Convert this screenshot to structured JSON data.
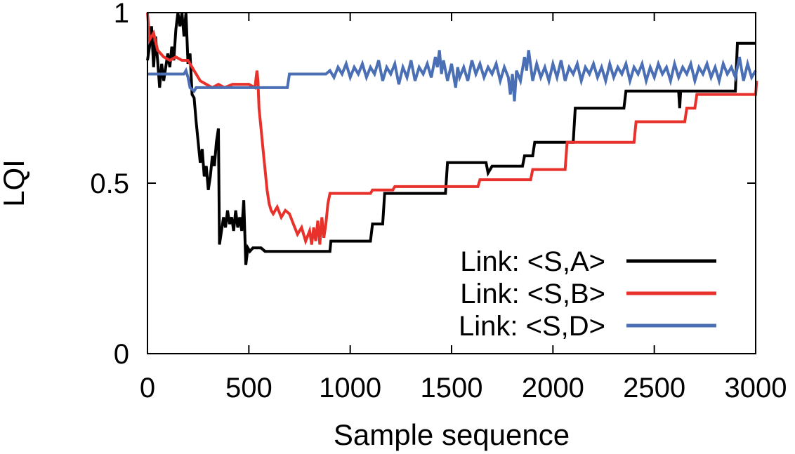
{
  "chart_data": {
    "type": "line",
    "title": "",
    "xlabel": "Sample sequence",
    "ylabel": "LQI",
    "xlim": [
      0,
      3000
    ],
    "ylim": [
      0,
      1
    ],
    "grid": false,
    "legend_position": "bottom-right",
    "x_ticks": [
      {
        "value": 0,
        "label": "0"
      },
      {
        "value": 500,
        "label": "500"
      },
      {
        "value": 1000,
        "label": "1000"
      },
      {
        "value": 1500,
        "label": "1500"
      },
      {
        "value": 2000,
        "label": "2000"
      },
      {
        "value": 2500,
        "label": "2500"
      },
      {
        "value": 3000,
        "label": "3000"
      }
    ],
    "y_ticks": [
      {
        "value": 0,
        "label": "0"
      },
      {
        "value": 0.5,
        "label": "0.5"
      },
      {
        "value": 1,
        "label": "1"
      }
    ],
    "series": [
      {
        "name": "Link: <S,A>",
        "color": "#000000",
        "points": [
          [
            0,
            0.86
          ],
          [
            10,
            0.9
          ],
          [
            20,
            0.96
          ],
          [
            30,
            0.84
          ],
          [
            40,
            0.93
          ],
          [
            50,
            0.86
          ],
          [
            60,
            0.78
          ],
          [
            70,
            0.85
          ],
          [
            80,
            0.8
          ],
          [
            90,
            0.84
          ],
          [
            100,
            0.88
          ],
          [
            110,
            0.84
          ],
          [
            120,
            0.9
          ],
          [
            130,
            0.86
          ],
          [
            140,
            0.95
          ],
          [
            150,
            1.0
          ],
          [
            160,
            0.96
          ],
          [
            170,
            1.0
          ],
          [
            180,
            0.93
          ],
          [
            190,
            1.0
          ],
          [
            200,
            0.85
          ],
          [
            210,
            0.88
          ],
          [
            220,
            0.76
          ],
          [
            230,
            0.75
          ],
          [
            240,
            0.68
          ],
          [
            250,
            0.62
          ],
          [
            260,
            0.56
          ],
          [
            270,
            0.6
          ],
          [
            280,
            0.52
          ],
          [
            290,
            0.55
          ],
          [
            300,
            0.48
          ],
          [
            310,
            0.52
          ],
          [
            320,
            0.58
          ],
          [
            330,
            0.55
          ],
          [
            340,
            0.62
          ],
          [
            350,
            0.66
          ],
          [
            355,
            0.32
          ],
          [
            365,
            0.36
          ],
          [
            375,
            0.4
          ],
          [
            385,
            0.37
          ],
          [
            395,
            0.42
          ],
          [
            405,
            0.38
          ],
          [
            415,
            0.4
          ],
          [
            425,
            0.36
          ],
          [
            435,
            0.42
          ],
          [
            445,
            0.37
          ],
          [
            455,
            0.4
          ],
          [
            465,
            0.36
          ],
          [
            475,
            0.45
          ],
          [
            485,
            0.26
          ],
          [
            495,
            0.31
          ],
          [
            505,
            0.3
          ],
          [
            520,
            0.31
          ],
          [
            560,
            0.31
          ],
          [
            580,
            0.3
          ],
          [
            900,
            0.3
          ],
          [
            905,
            0.33
          ],
          [
            1100,
            0.33
          ],
          [
            1110,
            0.38
          ],
          [
            1160,
            0.38
          ],
          [
            1170,
            0.47
          ],
          [
            1470,
            0.47
          ],
          [
            1480,
            0.56
          ],
          [
            1670,
            0.56
          ],
          [
            1680,
            0.53
          ],
          [
            1700,
            0.55
          ],
          [
            1850,
            0.55
          ],
          [
            1860,
            0.58
          ],
          [
            1900,
            0.58
          ],
          [
            1910,
            0.62
          ],
          [
            2100,
            0.62
          ],
          [
            2110,
            0.72
          ],
          [
            2350,
            0.72
          ],
          [
            2360,
            0.77
          ],
          [
            2620,
            0.77
          ],
          [
            2625,
            0.72
          ],
          [
            2630,
            0.77
          ],
          [
            2900,
            0.77
          ],
          [
            2910,
            0.91
          ],
          [
            3000,
            0.91
          ]
        ]
      },
      {
        "name": "Link: <S,B>",
        "color": "#e8312b",
        "points": [
          [
            0,
            1.0
          ],
          [
            10,
            0.92
          ],
          [
            30,
            0.94
          ],
          [
            50,
            0.89
          ],
          [
            80,
            0.87
          ],
          [
            110,
            0.86
          ],
          [
            140,
            0.87
          ],
          [
            170,
            0.86
          ],
          [
            200,
            0.86
          ],
          [
            230,
            0.83
          ],
          [
            260,
            0.8
          ],
          [
            290,
            0.79
          ],
          [
            320,
            0.78
          ],
          [
            350,
            0.79
          ],
          [
            380,
            0.78
          ],
          [
            420,
            0.79
          ],
          [
            460,
            0.79
          ],
          [
            500,
            0.79
          ],
          [
            530,
            0.78
          ],
          [
            540,
            0.83
          ],
          [
            545,
            0.8
          ],
          [
            550,
            0.72
          ],
          [
            560,
            0.66
          ],
          [
            570,
            0.6
          ],
          [
            580,
            0.54
          ],
          [
            590,
            0.48
          ],
          [
            600,
            0.44
          ],
          [
            610,
            0.42
          ],
          [
            620,
            0.41
          ],
          [
            640,
            0.43
          ],
          [
            660,
            0.4
          ],
          [
            680,
            0.42
          ],
          [
            700,
            0.41
          ],
          [
            720,
            0.38
          ],
          [
            740,
            0.35
          ],
          [
            760,
            0.37
          ],
          [
            780,
            0.33
          ],
          [
            800,
            0.36
          ],
          [
            810,
            0.32
          ],
          [
            820,
            0.37
          ],
          [
            830,
            0.33
          ],
          [
            840,
            0.39
          ],
          [
            850,
            0.32
          ],
          [
            860,
            0.4
          ],
          [
            870,
            0.34
          ],
          [
            880,
            0.38
          ],
          [
            890,
            0.44
          ],
          [
            900,
            0.47
          ],
          [
            1100,
            0.47
          ],
          [
            1110,
            0.48
          ],
          [
            1210,
            0.48
          ],
          [
            1220,
            0.49
          ],
          [
            1630,
            0.49
          ],
          [
            1640,
            0.51
          ],
          [
            1890,
            0.51
          ],
          [
            1900,
            0.54
          ],
          [
            2060,
            0.54
          ],
          [
            2070,
            0.62
          ],
          [
            2400,
            0.62
          ],
          [
            2410,
            0.68
          ],
          [
            2650,
            0.68
          ],
          [
            2660,
            0.72
          ],
          [
            2700,
            0.72
          ],
          [
            2710,
            0.76
          ],
          [
            3000,
            0.76
          ],
          [
            3005,
            0.8
          ]
        ]
      },
      {
        "name": "Link: <S,D>",
        "color": "#4a6fb5",
        "points": [
          [
            0,
            0.82
          ],
          [
            180,
            0.82
          ],
          [
            190,
            0.83
          ],
          [
            200,
            0.81
          ],
          [
            210,
            0.78
          ],
          [
            230,
            0.77
          ],
          [
            240,
            0.78
          ],
          [
            500,
            0.78
          ],
          [
            690,
            0.78
          ],
          [
            700,
            0.82
          ],
          [
            880,
            0.82
          ],
          [
            900,
            0.83
          ],
          [
            920,
            0.81
          ],
          [
            940,
            0.84
          ],
          [
            960,
            0.82
          ],
          [
            980,
            0.85
          ],
          [
            1000,
            0.81
          ],
          [
            1020,
            0.84
          ],
          [
            1040,
            0.82
          ],
          [
            1060,
            0.85
          ],
          [
            1080,
            0.81
          ],
          [
            1100,
            0.84
          ],
          [
            1120,
            0.82
          ],
          [
            1140,
            0.86
          ],
          [
            1160,
            0.8
          ],
          [
            1180,
            0.84
          ],
          [
            1200,
            0.82
          ],
          [
            1220,
            0.85
          ],
          [
            1240,
            0.79
          ],
          [
            1260,
            0.84
          ],
          [
            1280,
            0.81
          ],
          [
            1300,
            0.86
          ],
          [
            1320,
            0.8
          ],
          [
            1340,
            0.84
          ],
          [
            1360,
            0.82
          ],
          [
            1380,
            0.85
          ],
          [
            1400,
            0.81
          ],
          [
            1420,
            0.87
          ],
          [
            1430,
            0.84
          ],
          [
            1440,
            0.89
          ],
          [
            1450,
            0.82
          ],
          [
            1460,
            0.86
          ],
          [
            1480,
            0.8
          ],
          [
            1500,
            0.85
          ],
          [
            1520,
            0.78
          ],
          [
            1530,
            0.84
          ],
          [
            1540,
            0.81
          ],
          [
            1560,
            0.84
          ],
          [
            1580,
            0.8
          ],
          [
            1600,
            0.86
          ],
          [
            1620,
            0.82
          ],
          [
            1640,
            0.85
          ],
          [
            1660,
            0.81
          ],
          [
            1680,
            0.84
          ],
          [
            1700,
            0.82
          ],
          [
            1720,
            0.85
          ],
          [
            1740,
            0.8
          ],
          [
            1760,
            0.84
          ],
          [
            1780,
            0.81
          ],
          [
            1790,
            0.76
          ],
          [
            1800,
            0.82
          ],
          [
            1810,
            0.74
          ],
          [
            1820,
            0.83
          ],
          [
            1840,
            0.8
          ],
          [
            1860,
            0.87
          ],
          [
            1870,
            0.83
          ],
          [
            1880,
            0.89
          ],
          [
            1900,
            0.8
          ],
          [
            1920,
            0.85
          ],
          [
            1940,
            0.81
          ],
          [
            1960,
            0.84
          ],
          [
            1980,
            0.8
          ],
          [
            2000,
            0.85
          ],
          [
            2020,
            0.81
          ],
          [
            2040,
            0.86
          ],
          [
            2060,
            0.8
          ],
          [
            2080,
            0.84
          ],
          [
            2100,
            0.82
          ],
          [
            2120,
            0.85
          ],
          [
            2140,
            0.8
          ],
          [
            2160,
            0.84
          ],
          [
            2180,
            0.82
          ],
          [
            2200,
            0.85
          ],
          [
            2220,
            0.81
          ],
          [
            2240,
            0.84
          ],
          [
            2260,
            0.8
          ],
          [
            2280,
            0.85
          ],
          [
            2300,
            0.81
          ],
          [
            2320,
            0.84
          ],
          [
            2340,
            0.82
          ],
          [
            2360,
            0.85
          ],
          [
            2380,
            0.8
          ],
          [
            2400,
            0.84
          ],
          [
            2420,
            0.82
          ],
          [
            2440,
            0.85
          ],
          [
            2460,
            0.8
          ],
          [
            2480,
            0.84
          ],
          [
            2500,
            0.81
          ],
          [
            2520,
            0.85
          ],
          [
            2540,
            0.82
          ],
          [
            2560,
            0.84
          ],
          [
            2580,
            0.8
          ],
          [
            2600,
            0.85
          ],
          [
            2620,
            0.81
          ],
          [
            2640,
            0.84
          ],
          [
            2660,
            0.82
          ],
          [
            2680,
            0.85
          ],
          [
            2700,
            0.8
          ],
          [
            2720,
            0.84
          ],
          [
            2740,
            0.82
          ],
          [
            2760,
            0.85
          ],
          [
            2780,
            0.81
          ],
          [
            2800,
            0.84
          ],
          [
            2820,
            0.8
          ],
          [
            2840,
            0.85
          ],
          [
            2860,
            0.82
          ],
          [
            2880,
            0.84
          ],
          [
            2900,
            0.81
          ],
          [
            2920,
            0.87
          ],
          [
            2940,
            0.8
          ],
          [
            2960,
            0.85
          ],
          [
            2980,
            0.81
          ],
          [
            3000,
            0.83
          ]
        ]
      }
    ]
  }
}
